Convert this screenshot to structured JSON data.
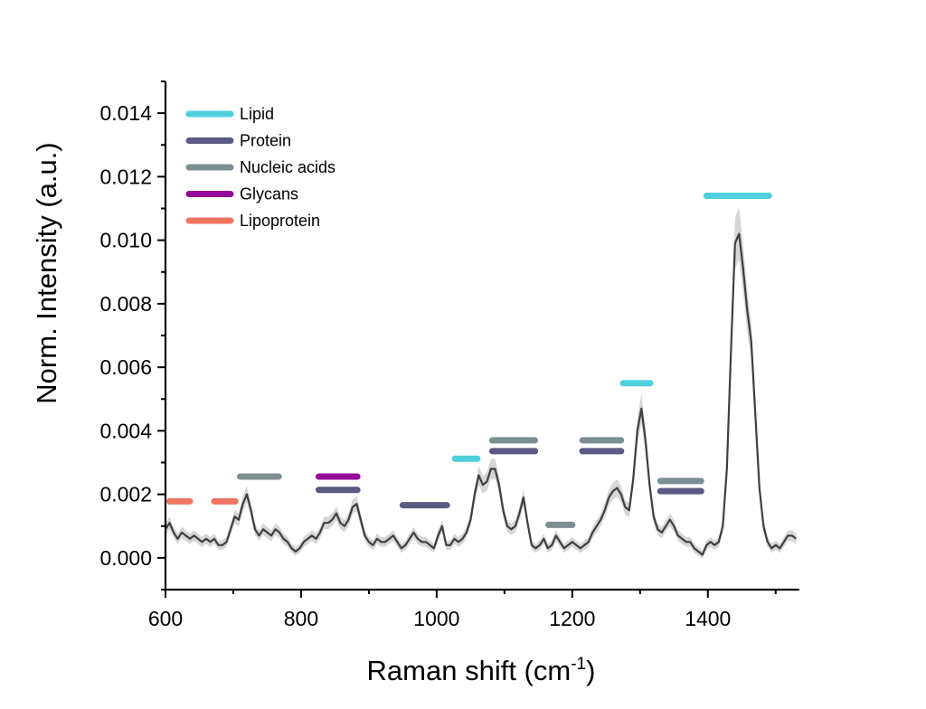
{
  "chart_data": {
    "type": "line",
    "xlabel": "Raman shift (cm",
    "xlabel_sup": "-1",
    "xlabel_end": ")",
    "ylabel": "Norm. Intensity (a.u.)",
    "xlim": [
      600,
      1535
    ],
    "ylim": [
      -0.001,
      0.015
    ],
    "x_ticks": [
      "600",
      "800",
      "1000",
      "1200",
      "1400"
    ],
    "x_tick_values": [
      600,
      800,
      1000,
      1200,
      1400
    ],
    "y_ticks": [
      "0.000",
      "0.002",
      "0.004",
      "0.006",
      "0.008",
      "0.010",
      "0.012",
      "0.014"
    ],
    "y_tick_values": [
      0,
      0.002,
      0.004,
      0.006,
      0.008,
      0.01,
      0.012,
      0.014
    ],
    "grid": false,
    "legend_position": "top-left",
    "categories": [
      {
        "name": "Lipid",
        "color": "#4fd0dc"
      },
      {
        "name": "Protein",
        "color": "#5a5a82"
      },
      {
        "name": "Nucleic acids",
        "color": "#7d8e93"
      },
      {
        "name": "Glycans",
        "color": "#950a9b"
      },
      {
        "name": "Lipoprotein",
        "color": "#f07462"
      }
    ],
    "bands": [
      {
        "category": "Lipoprotein",
        "x1": 606,
        "x2": 636,
        "y": 0.00178
      },
      {
        "category": "Lipoprotein",
        "x1": 672,
        "x2": 703,
        "y": 0.00178
      },
      {
        "category": "Nucleic acids",
        "x1": 710,
        "x2": 767,
        "y": 0.00256
      },
      {
        "category": "Glycans",
        "x1": 826,
        "x2": 883,
        "y": 0.00256
      },
      {
        "category": "Protein",
        "x1": 826,
        "x2": 883,
        "y": 0.00214
      },
      {
        "category": "Protein",
        "x1": 950,
        "x2": 1015,
        "y": 0.00166
      },
      {
        "category": "Lipid",
        "x1": 1027,
        "x2": 1060,
        "y": 0.00312
      },
      {
        "category": "Nucleic acids",
        "x1": 1082,
        "x2": 1145,
        "y": 0.0037
      },
      {
        "category": "Protein",
        "x1": 1082,
        "x2": 1145,
        "y": 0.00336
      },
      {
        "category": "Nucleic acids",
        "x1": 1165,
        "x2": 1200,
        "y": 0.00104
      },
      {
        "category": "Nucleic acids",
        "x1": 1215,
        "x2": 1272,
        "y": 0.0037
      },
      {
        "category": "Protein",
        "x1": 1215,
        "x2": 1272,
        "y": 0.00336
      },
      {
        "category": "Lipid",
        "x1": 1275,
        "x2": 1315,
        "y": 0.0055
      },
      {
        "category": "Nucleic acids",
        "x1": 1330,
        "x2": 1390,
        "y": 0.00242
      },
      {
        "category": "Protein",
        "x1": 1330,
        "x2": 1390,
        "y": 0.0021
      },
      {
        "category": "Lipid",
        "x1": 1398,
        "x2": 1490,
        "y": 0.0114
      }
    ],
    "series": [
      {
        "line_color": "#3f3f3f",
        "band_color": "#d6d6d6",
        "x": [
          600,
          606,
          612,
          618,
          624,
          630,
          636,
          642,
          648,
          654,
          660,
          666,
          672,
          678,
          684,
          690,
          696,
          702,
          708,
          714,
          720,
          726,
          732,
          738,
          744,
          750,
          756,
          762,
          768,
          774,
          780,
          786,
          792,
          798,
          804,
          810,
          816,
          822,
          828,
          834,
          840,
          846,
          852,
          858,
          864,
          870,
          876,
          882,
          888,
          894,
          900,
          906,
          912,
          918,
          924,
          930,
          936,
          942,
          948,
          954,
          960,
          966,
          972,
          978,
          984,
          990,
          996,
          1002,
          1008,
          1014,
          1020,
          1026,
          1032,
          1038,
          1044,
          1050,
          1056,
          1062,
          1068,
          1074,
          1080,
          1086,
          1092,
          1098,
          1104,
          1110,
          1116,
          1122,
          1128,
          1134,
          1140,
          1146,
          1152,
          1158,
          1164,
          1170,
          1176,
          1182,
          1188,
          1194,
          1200,
          1206,
          1212,
          1218,
          1224,
          1230,
          1236,
          1242,
          1248,
          1254,
          1260,
          1266,
          1272,
          1278,
          1284,
          1290,
          1296,
          1302,
          1308,
          1314,
          1320,
          1326,
          1332,
          1338,
          1344,
          1350,
          1356,
          1362,
          1368,
          1374,
          1380,
          1386,
          1392,
          1398,
          1404,
          1410,
          1416,
          1422,
          1428,
          1434,
          1440,
          1446,
          1452,
          1458,
          1464,
          1470,
          1476,
          1482,
          1488,
          1494,
          1500,
          1506,
          1512,
          1518,
          1524,
          1530
        ],
        "y": [
          0.0009,
          0.0011,
          0.0008,
          0.0006,
          0.0008,
          0.0007,
          0.0006,
          0.0007,
          0.0006,
          0.0005,
          0.0006,
          0.0005,
          0.0006,
          0.0004,
          0.0004,
          0.0005,
          0.0009,
          0.0013,
          0.0012,
          0.0017,
          0.002,
          0.0015,
          0.0009,
          0.0007,
          0.0009,
          0.0008,
          0.0007,
          0.0009,
          0.0008,
          0.0006,
          0.0005,
          0.0003,
          0.0002,
          0.0003,
          0.0005,
          0.0006,
          0.0007,
          0.0006,
          0.0008,
          0.0011,
          0.0011,
          0.0012,
          0.0014,
          0.0011,
          0.001,
          0.0012,
          0.0016,
          0.0017,
          0.0012,
          0.0007,
          0.0005,
          0.0004,
          0.0006,
          0.0005,
          0.0005,
          0.0006,
          0.0007,
          0.0005,
          0.0003,
          0.0004,
          0.0006,
          0.0008,
          0.0006,
          0.0005,
          0.0005,
          0.0004,
          0.0003,
          0.0007,
          0.001,
          0.0004,
          0.0004,
          0.0006,
          0.0005,
          0.0006,
          0.0008,
          0.0012,
          0.002,
          0.0026,
          0.0023,
          0.0024,
          0.0028,
          0.0028,
          0.0023,
          0.0015,
          0.001,
          0.0009,
          0.001,
          0.0014,
          0.0019,
          0.0011,
          0.0004,
          0.0003,
          0.0004,
          0.0006,
          0.0003,
          0.0004,
          0.0007,
          0.0005,
          0.0003,
          0.0004,
          0.0005,
          0.0004,
          0.0003,
          0.0004,
          0.0005,
          0.0008,
          0.001,
          0.0012,
          0.0015,
          0.0019,
          0.0021,
          0.0022,
          0.002,
          0.0016,
          0.0015,
          0.0025,
          0.004,
          0.0047,
          0.0037,
          0.0023,
          0.0013,
          0.0009,
          0.0008,
          0.001,
          0.0012,
          0.001,
          0.0007,
          0.0006,
          0.0005,
          0.0005,
          0.0003,
          0.0002,
          0.0001,
          0.0004,
          0.0005,
          0.0004,
          0.0005,
          0.001,
          0.0028,
          0.0065,
          0.0099,
          0.0102,
          0.0091,
          0.0078,
          0.0068,
          0.0045,
          0.0022,
          0.001,
          0.0005,
          0.0003,
          0.0004,
          0.0003,
          0.0005,
          0.0007,
          0.0007,
          0.0006
        ]
      }
    ]
  }
}
